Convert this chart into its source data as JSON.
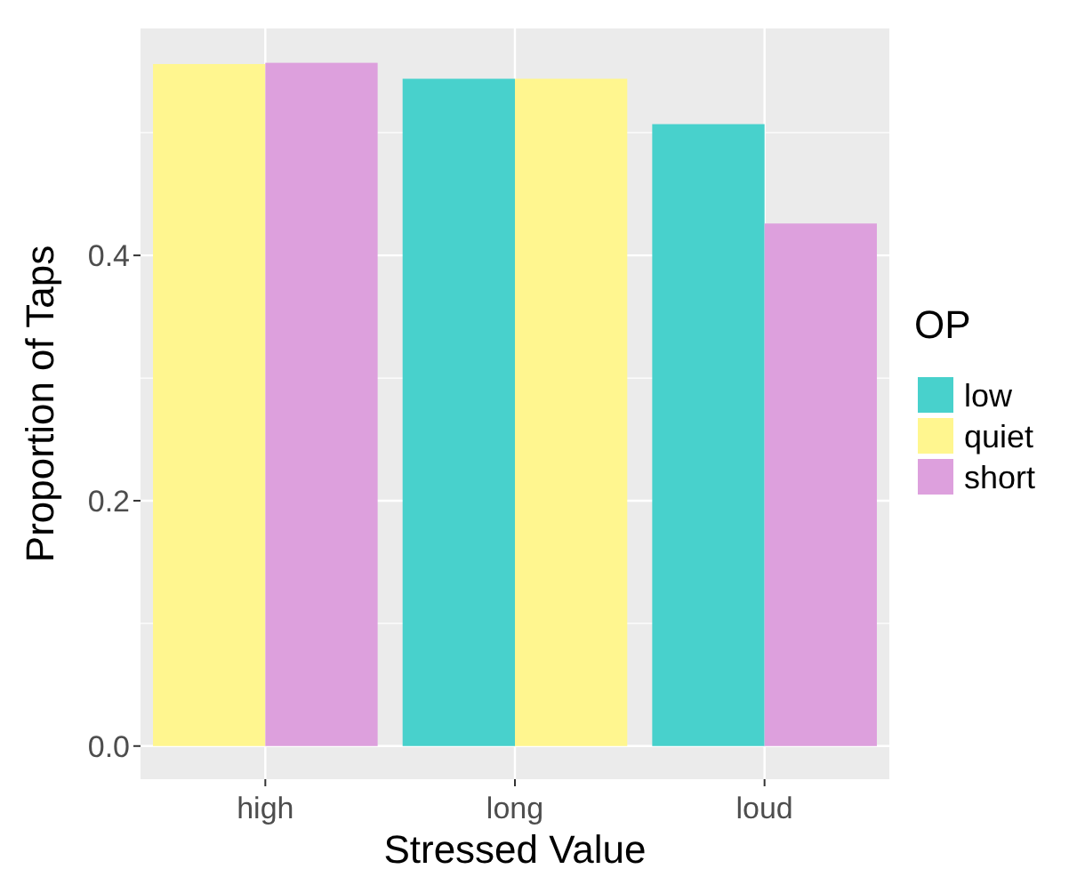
{
  "chart_data": {
    "type": "bar",
    "xlabel": "Stressed Value",
    "ylabel": "Proportion of Taps",
    "legend_title": "OP",
    "categories": [
      "high",
      "long",
      "loud"
    ],
    "series": [
      {
        "name": "low",
        "color": "#48d1cc",
        "values": [
          null,
          0.544,
          0.507
        ]
      },
      {
        "name": "quiet",
        "color": "#fff68f",
        "values": [
          0.556,
          0.544,
          null
        ]
      },
      {
        "name": "short",
        "color": "#dda0dd",
        "values": [
          0.557,
          null,
          0.426
        ]
      }
    ],
    "ylim": [
      -0.027,
      0.585
    ],
    "yticks": [
      {
        "value": 0,
        "label": "0.0"
      },
      {
        "value": 0.2,
        "label": "0.2"
      },
      {
        "value": 0.4,
        "label": "0.4"
      }
    ],
    "grid": true,
    "legend": "right"
  }
}
